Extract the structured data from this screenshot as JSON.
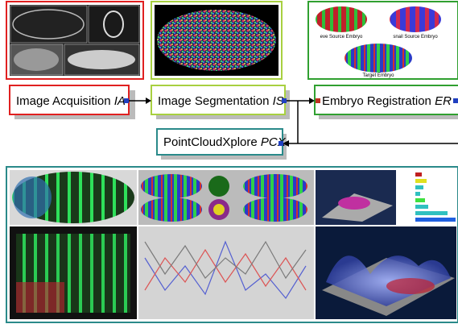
{
  "stages": [
    {
      "label": "Image Acquisition",
      "abbr": "IA"
    },
    {
      "label": "Image Segmentation",
      "abbr": "IS"
    },
    {
      "label": "Embryo Registration",
      "abbr": "ER"
    }
  ],
  "pcx": {
    "label": "PointCloudXplore",
    "abbr": "PCX"
  },
  "registration_images": [
    "eve Source Embryo",
    "snail Source Embryo",
    "Target Embryo"
  ]
}
